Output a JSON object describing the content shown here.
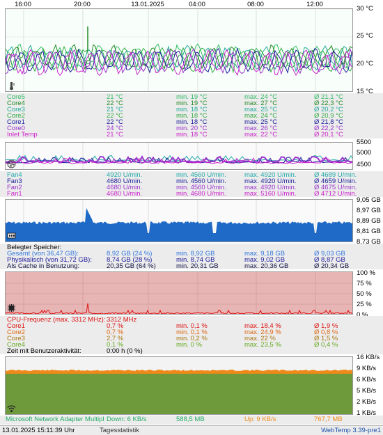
{
  "time_axis": [
    "16:00",
    "20:00",
    "13.01.2025",
    "04:00",
    "08:00",
    "12:00"
  ],
  "temp": {
    "y_ticks": [
      "30 °C",
      "25 °C",
      "20 °C",
      "15 °C"
    ],
    "rows": [
      {
        "name": "Core5",
        "cur": "21 °C",
        "min": "min. 19 °C",
        "max": "max. 24 °C",
        "avg": "Ø 21,1 °C",
        "color": "#33bb66"
      },
      {
        "name": "Core4",
        "cur": "22 °C",
        "min": "min. 19 °C",
        "max": "max. 27 °C",
        "avg": "Ø 22,3 °C",
        "color": "#228822"
      },
      {
        "name": "Core3",
        "cur": "21 °C",
        "min": "min. 18 °C",
        "max": "max. 25 °C",
        "avg": "Ø 20,2 °C",
        "color": "#22aa99"
      },
      {
        "name": "Core2",
        "cur": "22 °C",
        "min": "min. 18 °C",
        "max": "max. 24 °C",
        "avg": "Ø 20,9 °C",
        "color": "#33aa44"
      },
      {
        "name": "Core1",
        "cur": "22 °C",
        "min": "min. 18 °C",
        "max": "max. 25 °C",
        "avg": "Ø 21,8 °C",
        "color": "#1a1a99"
      },
      {
        "name": "Core0",
        "cur": "24 °C",
        "min": "min. 20 °C",
        "max": "max. 26 °C",
        "avg": "Ø 22,2 °C",
        "color": "#9933cc"
      },
      {
        "name": "Inlet Temp",
        "cur": "21 °C",
        "min": "min. 18 °C",
        "max": "max. 22 °C",
        "avg": "Ø 20,1 °C",
        "color": "#cc22cc"
      }
    ]
  },
  "fan": {
    "y_ticks": [
      "5500",
      "5000",
      "4500"
    ],
    "rows": [
      {
        "name": "Fan4",
        "cur": "4920 U/min.",
        "min": "min. 4560 U/min.",
        "max": "max. 4920 U/min.",
        "avg": "Ø 4689 U/min.",
        "color": "#22aaaa"
      },
      {
        "name": "Fan3",
        "cur": "4680 U/min.",
        "min": "min. 4560 U/min.",
        "max": "max. 4920 U/min.",
        "avg": "Ø 4659 U/min.",
        "color": "#1a1a99"
      },
      {
        "name": "Fan2",
        "cur": "4680 U/min.",
        "min": "min. 4560 U/min.",
        "max": "max. 4920 U/min.",
        "avg": "Ø 4675 U/min.",
        "color": "#9933cc"
      },
      {
        "name": "Fan1",
        "cur": "4680 U/min.",
        "min": "min. 4680 U/min.",
        "max": "max. 5160 U/min.",
        "avg": "Ø 4712 U/min.",
        "color": "#cc22cc"
      }
    ]
  },
  "mem": {
    "y_ticks": [
      "9,05 GB",
      "8,97 GB",
      "8,89 GB",
      "8,81 GB",
      "8,73 GB"
    ],
    "title": "Belegter Speicher:",
    "rows": [
      {
        "name": "Gesamt (von 36,47 GB):",
        "cur": "8,92 GB (24 %)",
        "min": "min. 8,92 GB",
        "max": "max. 9,18 GB",
        "avg": "Ø 9,03 GB",
        "color": "#3377dd"
      },
      {
        "name": "Physikalisch (von 31,72 GB):",
        "cur": "8,74 GB (28 %)",
        "min": "min. 8,74 GB",
        "max": "max. 9,02 GB",
        "avg": "Ø 8,87 GB",
        "color": "#1a1a99"
      },
      {
        "name": "Als Cache in Benutzung:",
        "cur": "20,35 GB (64 %)",
        "min": "min. 20,31 GB",
        "max": "max. 20,36 GB",
        "avg": "Ø 20,34 GB",
        "color": "#111144"
      }
    ]
  },
  "cpu": {
    "y_ticks": [
      "100 %",
      "75 %",
      "50 %",
      "25 %",
      "0 %"
    ],
    "freq_label": "CPU-Frequenz (max. 3312 MHz):",
    "freq_value": "3312 MHz",
    "rows": [
      {
        "name": "Core1",
        "cur": "0,7 %",
        "min": "min. 0,1 %",
        "max": "max. 18,4 %",
        "avg": "Ø 1,9 %",
        "color": "#dd1111"
      },
      {
        "name": "Core2",
        "cur": "0,7 %",
        "min": "min. 0,1 %",
        "max": "max. 24,9 %",
        "avg": "Ø 0,8 %",
        "color": "#dd6611"
      },
      {
        "name": "Core3",
        "cur": "2,7 %",
        "min": "min. 0,2 %",
        "max": "max. 22 %",
        "avg": "Ø 1,5 %",
        "color": "#aa7711"
      },
      {
        "name": "Core4",
        "cur": "0,1 %",
        "min": "min. 0 %",
        "max": "max. 23,5 %",
        "avg": "Ø 0,4 %",
        "color": "#66aa22"
      }
    ],
    "activity_label": "Zeit mit Benutzeraktivität:",
    "activity_value": "0:00 h (0 %)"
  },
  "net": {
    "y_ticks": [
      "16 KB/s",
      "9 KB/s",
      "6 KB/s",
      "5 KB/s",
      "2 KB/s",
      "1 KB/s"
    ],
    "adapter": "Microsoft Network Adapter Multipl",
    "down": "Down: 6 KB/s",
    "down_total": "588,5 MB",
    "up": "Up: 9 KB/s",
    "up_total": "767,7 MB"
  },
  "footer": {
    "datetime": "13.01.2025 15:11:39 Uhr",
    "link": "Tagesstatistik",
    "version": "WebTemp 3.39-pre1"
  },
  "colors": {
    "temp_bg": "#f8fffa",
    "mem_fill": "#1f69c7",
    "cpu_bg": "#e8b5b5",
    "cpu_line": "#dd1111",
    "net_fill": "#6f9a3c",
    "net_up": "#ee8a1a",
    "fan_line": "#9933cc"
  },
  "icons": [
    "thermometer-icon",
    "fan-icon",
    "memory-chip-icon",
    "cpu-chip-icon",
    "network-icon"
  ]
}
